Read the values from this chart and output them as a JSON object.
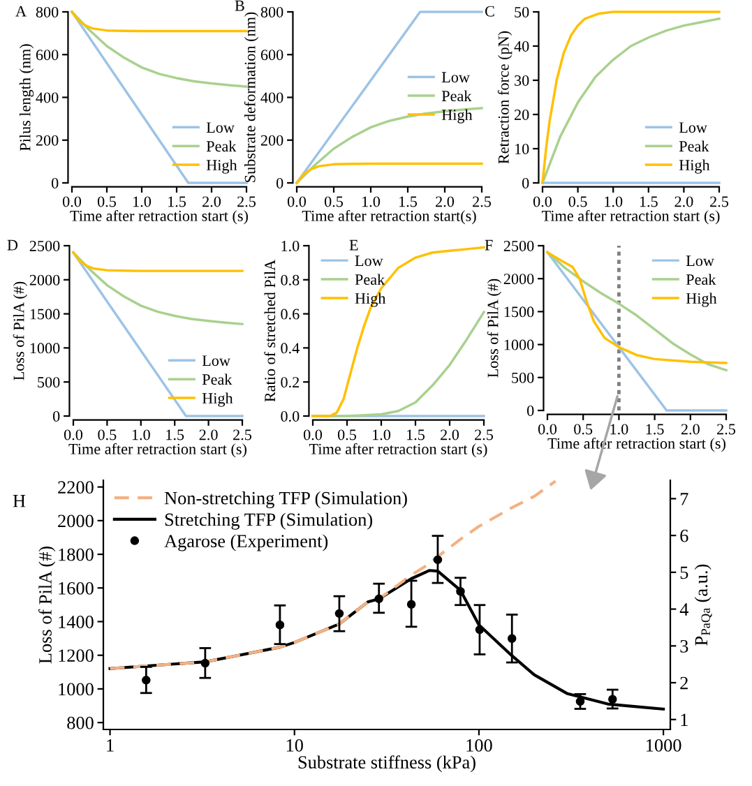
{
  "chart_data": [
    {
      "type": "line",
      "annotations": [
        "A"
      ],
      "xlabel": "Time after retraction start (s)",
      "ylabel": "Pilus length (nm)",
      "xlim": [
        0,
        2.5
      ],
      "ylim": [
        0,
        800
      ],
      "xticks": [
        {
          "value": 0,
          "label": "0.0"
        },
        0.5,
        {
          "value": 1,
          "label": "1.0"
        },
        1.5,
        {
          "value": 2,
          "label": "2.0"
        },
        2.5
      ],
      "yticks": [
        0,
        200,
        400,
        600,
        800
      ],
      "legend": "bottom right",
      "series": [
        {
          "name": "Low",
          "color": "#9dc3e6",
          "x": [
            0,
            1.667,
            2.5
          ],
          "values": [
            800,
            0,
            0
          ]
        },
        {
          "name": "Peak",
          "color": "#a9d18e",
          "x": [
            0,
            0.25,
            0.5,
            0.75,
            1.0,
            1.25,
            1.5,
            1.75,
            2.0,
            2.25,
            2.5
          ],
          "values": [
            800,
            715,
            640,
            585,
            540,
            510,
            490,
            475,
            465,
            457,
            450
          ]
        },
        {
          "name": "High",
          "color": "#ffc000",
          "x": [
            0,
            0.1,
            0.2,
            0.3,
            0.5,
            0.75,
            1.0,
            1.5,
            2.0,
            2.5
          ],
          "values": [
            800,
            758,
            735,
            722,
            713,
            711,
            710,
            710,
            710,
            710
          ]
        }
      ]
    },
    {
      "type": "line",
      "annotations": [
        "B"
      ],
      "xlabel": "Time after retraction start(s)",
      "ylabel": "Substrate deformation (nm)",
      "xlim": [
        0,
        2.5
      ],
      "ylim": [
        0,
        800
      ],
      "xticks": [
        {
          "value": 0,
          "label": "0.0"
        },
        0.5,
        {
          "value": 1,
          "label": "1.0"
        },
        1.5,
        {
          "value": 2,
          "label": "2.0"
        },
        2.5
      ],
      "yticks": [
        0,
        200,
        400,
        600,
        800
      ],
      "legend": "right",
      "series": [
        {
          "name": "Low",
          "color": "#9dc3e6",
          "x": [
            0,
            1.667,
            2.5
          ],
          "values": [
            0,
            800,
            800
          ]
        },
        {
          "name": "Peak",
          "color": "#a9d18e",
          "x": [
            0,
            0.25,
            0.5,
            0.75,
            1.0,
            1.25,
            1.5,
            1.75,
            2.0,
            2.25,
            2.5
          ],
          "values": [
            0,
            85,
            160,
            215,
            260,
            290,
            310,
            325,
            335,
            343,
            350
          ]
        },
        {
          "name": "High",
          "color": "#ffc000",
          "x": [
            0,
            0.1,
            0.2,
            0.3,
            0.5,
            0.75,
            1.0,
            1.5,
            2.0,
            2.5
          ],
          "values": [
            0,
            42,
            65,
            78,
            87,
            89,
            90,
            90,
            90,
            90
          ]
        }
      ]
    },
    {
      "type": "line",
      "annotations": [
        "C"
      ],
      "xlabel": "Time after retraction start (s)",
      "ylabel": "Retraction force (pN)",
      "xlim": [
        0,
        2.5
      ],
      "ylim": [
        0,
        50
      ],
      "xticks": [
        {
          "value": 0,
          "label": "0.0"
        },
        0.5,
        {
          "value": 1,
          "label": "1.0"
        },
        1.5,
        {
          "value": 2,
          "label": "2.0"
        },
        2.5
      ],
      "yticks": [
        0,
        10,
        20,
        30,
        40,
        50
      ],
      "legend": "bottom right",
      "series": [
        {
          "name": "Low",
          "color": "#9dc3e6",
          "x": [
            0,
            2.5
          ],
          "values": [
            0,
            0
          ]
        },
        {
          "name": "Peak",
          "color": "#a9d18e",
          "x": [
            0,
            0.25,
            0.5,
            0.75,
            1.0,
            1.25,
            1.5,
            1.75,
            2.0,
            2.25,
            2.5
          ],
          "values": [
            0,
            13.5,
            23.5,
            31,
            36,
            40,
            42.5,
            44.5,
            46,
            47,
            48
          ]
        },
        {
          "name": "High",
          "color": "#ffc000",
          "x": [
            0,
            0.05,
            0.1,
            0.2,
            0.3,
            0.4,
            0.5,
            0.6,
            0.8,
            1.0,
            1.5,
            2.5
          ],
          "values": [
            0,
            10,
            18,
            30,
            38,
            43,
            46,
            48,
            49.5,
            50,
            50,
            50
          ]
        }
      ]
    },
    {
      "type": "line",
      "annotations": [
        "D"
      ],
      "xlabel": "Time after retraction start (s)",
      "ylabel": "Loss of PilA (#)",
      "xlim": [
        0,
        2.5
      ],
      "ylim": [
        0,
        2500
      ],
      "xticks": [
        {
          "value": 0,
          "label": "0.0"
        },
        0.5,
        {
          "value": 1,
          "label": "1.0"
        },
        1.5,
        {
          "value": 2,
          "label": "2.0"
        },
        2.5
      ],
      "yticks": [
        0,
        500,
        1000,
        1500,
        2000,
        2500
      ],
      "legend": "bottom right",
      "series": [
        {
          "name": "Low",
          "color": "#9dc3e6",
          "x": [
            0,
            1.667,
            2.5
          ],
          "values": [
            2400,
            0,
            0
          ]
        },
        {
          "name": "Peak",
          "color": "#a9d18e",
          "x": [
            0,
            0.25,
            0.5,
            0.75,
            1.0,
            1.25,
            1.5,
            1.75,
            2.0,
            2.25,
            2.5
          ],
          "values": [
            2400,
            2145,
            1920,
            1755,
            1620,
            1530,
            1470,
            1425,
            1395,
            1370,
            1350
          ]
        },
        {
          "name": "High",
          "color": "#ffc000",
          "x": [
            0,
            0.1,
            0.2,
            0.3,
            0.5,
            0.75,
            1.0,
            1.5,
            2.0,
            2.5
          ],
          "values": [
            2400,
            2275,
            2205,
            2165,
            2140,
            2133,
            2130,
            2130,
            2130,
            2130
          ]
        }
      ]
    },
    {
      "type": "line",
      "annotations": [
        "E"
      ],
      "xlabel": "Time after retraction start (s)",
      "ylabel": "Ratio of stretched PilA",
      "xlim": [
        0,
        2.5
      ],
      "ylim": [
        0,
        1
      ],
      "xticks": [
        {
          "value": 0,
          "label": "0.0"
        },
        0.5,
        {
          "value": 1,
          "label": "1.0"
        },
        1.5,
        {
          "value": 2,
          "label": "2.0"
        },
        2.5
      ],
      "yticks": [
        {
          "value": 0,
          "label": "0.0"
        },
        0.2,
        0.4,
        0.6,
        0.8,
        {
          "value": 1,
          "label": "1.0"
        }
      ],
      "legend": "top left",
      "series": [
        {
          "name": "Low",
          "color": "#9dc3e6",
          "x": [
            0,
            2.5
          ],
          "values": [
            0,
            0
          ]
        },
        {
          "name": "Peak",
          "color": "#a9d18e",
          "x": [
            0,
            0.5,
            1.0,
            1.25,
            1.5,
            1.75,
            2.0,
            2.25,
            2.5
          ],
          "values": [
            0,
            0,
            0.01,
            0.03,
            0.08,
            0.18,
            0.3,
            0.45,
            0.61
          ]
        },
        {
          "name": "High",
          "color": "#ffc000",
          "x": [
            0,
            0.25,
            0.35,
            0.45,
            0.55,
            0.65,
            0.75,
            0.85,
            1.0,
            1.25,
            1.5,
            1.75,
            2.0,
            2.25,
            2.5
          ],
          "values": [
            0,
            0,
            0.02,
            0.1,
            0.25,
            0.4,
            0.53,
            0.64,
            0.75,
            0.87,
            0.93,
            0.96,
            0.97,
            0.98,
            0.99
          ]
        }
      ]
    },
    {
      "type": "line",
      "annotations": [
        "F"
      ],
      "xlabel": "Time after retraction start (s)",
      "ylabel": "Loss of PilA (#)",
      "xlim": [
        0,
        2.5
      ],
      "ylim": [
        0,
        2500
      ],
      "xticks": [
        {
          "value": 0,
          "label": "0.0"
        },
        0.5,
        {
          "value": 1,
          "label": "1.0"
        },
        1.5,
        {
          "value": 2,
          "label": "2.0"
        },
        2.5
      ],
      "yticks": [
        0,
        500,
        1000,
        1500,
        2000,
        2500
      ],
      "legend": "top right",
      "ref_lines": [
        {
          "axis": "x",
          "value": 1,
          "color": "#808080",
          "line_style": "dotted"
        }
      ],
      "series": [
        {
          "name": "Low",
          "color": "#9dc3e6",
          "x": [
            0,
            1.667,
            2.5
          ],
          "values": [
            2400,
            0,
            0
          ]
        },
        {
          "name": "Peak",
          "color": "#a9d18e",
          "x": [
            0,
            0.25,
            0.5,
            0.75,
            1.0,
            1.25,
            1.5,
            1.75,
            2.0,
            2.25,
            2.5
          ],
          "values": [
            2400,
            2160,
            1960,
            1780,
            1620,
            1440,
            1230,
            1020,
            850,
            700,
            610
          ]
        },
        {
          "name": "High",
          "color": "#ffc000",
          "x": [
            0,
            0.2,
            0.35,
            0.45,
            0.55,
            0.65,
            0.8,
            1.0,
            1.25,
            1.5,
            2.0,
            2.5
          ],
          "values": [
            2400,
            2270,
            2180,
            2000,
            1650,
            1350,
            1100,
            960,
            840,
            780,
            740,
            720
          ]
        }
      ]
    },
    {
      "type": "line",
      "annotations": [
        "H"
      ],
      "xlabel": "Substrate stiffness (kPa)",
      "ylabel": "Loss of PilA (#)",
      "y2label": "P$_{PaQa}$ (a.u.)",
      "log": "x",
      "xlim": [
        0.92,
        1090
      ],
      "ylim": [
        759,
        2240
      ],
      "y2lim": [
        0.73,
        7.5
      ],
      "xticks": [
        1,
        10,
        100,
        1000
      ],
      "yticks": [
        800,
        1000,
        1200,
        1400,
        1600,
        1800,
        2000,
        2200
      ],
      "y2ticks": [
        1,
        2,
        3,
        4,
        5,
        6,
        7
      ],
      "legend": "top left",
      "series": [
        {
          "name": "Non-stretching TFP (Simulation)",
          "color": "#f4b183",
          "line_style": "dashed",
          "x": [
            1,
            3.28,
            5,
            8.34,
            10,
            17.5,
            25,
            28.7,
            43,
            54,
            59.8,
            80,
            100,
            150,
            200,
            260
          ],
          "values": [
            1121,
            1161,
            1200,
            1248,
            1276,
            1386,
            1517,
            1535,
            1676,
            1745,
            1786,
            1892,
            1966,
            2076,
            2145,
            2235
          ]
        },
        {
          "name": "Stretching TFP (Simulation)",
          "color": "#000000",
          "line_style": "solid",
          "x": [
            1,
            3.28,
            5,
            8.34,
            10,
            17.5,
            25,
            28.7,
            43,
            54,
            59.8,
            79.4,
            100,
            150,
            200,
            300,
            500,
            1000
          ],
          "values": [
            1121,
            1161,
            1200,
            1248,
            1276,
            1386,
            1517,
            1535,
            1655,
            1704,
            1700,
            1586,
            1380,
            1200,
            1083,
            973,
            910,
            880
          ]
        },
        {
          "name": "Agarose (Experiment)",
          "type": "scatter",
          "axis": "y2",
          "marker": "circle",
          "color": "#000000",
          "x": [
            1.57,
            3.28,
            8.34,
            17.5,
            28.7,
            43.0,
            59.8,
            79.4,
            100.9,
            151,
            354,
            530
          ],
          "values": [
            2.07,
            2.53,
            3.57,
            3.88,
            4.28,
            4.13,
            5.34,
            4.48,
            3.44,
            3.2,
            1.49,
            1.55
          ],
          "errors": [
            [
              1.72,
              2.43
            ],
            [
              2.13,
              2.94
            ],
            [
              3.05,
              4.1
            ],
            [
              3.4,
              4.35
            ],
            [
              3.9,
              4.69
            ],
            [
              3.52,
              4.77
            ],
            [
              4.71,
              5.99
            ],
            [
              4.11,
              4.85
            ],
            [
              2.77,
              4.11
            ],
            [
              2.55,
              3.85
            ],
            [
              1.29,
              1.69
            ],
            [
              1.3,
              1.81
            ]
          ]
        }
      ]
    }
  ]
}
